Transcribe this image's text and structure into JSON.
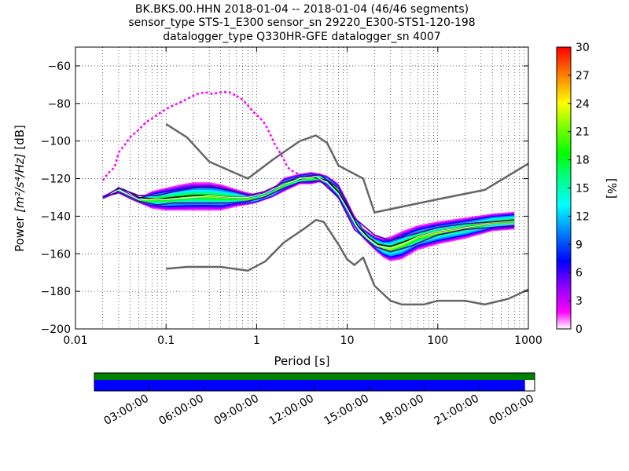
{
  "chart_data": [
    {
      "type": "heatmap",
      "title_lines": [
        "BK.BKS.00.HHN   2018-01-04 -- 2018-01-04  (46/46 segments)",
        "sensor_type STS-1_E300 sensor_sn 29220_E300-STS1-120-198",
        "datalogger_type Q330HR-GFE datalogger_sn 4007"
      ],
      "xlabel": "Period [s]",
      "ylabel_prefix": "Power ",
      "ylabel_units": "[m²/s⁴/Hz]",
      "ylabel_suffix": " [dB]",
      "xscale": "log",
      "xlim": [
        0.01,
        1000
      ],
      "ylim": [
        -200,
        -50
      ],
      "x_ticks": [
        0.01,
        0.1,
        1,
        10,
        100,
        1000
      ],
      "x_tick_labels": [
        "0.01",
        "0.1",
        "1",
        "10",
        "100",
        "1000"
      ],
      "y_ticks": [
        -200,
        -180,
        -160,
        -140,
        -120,
        -100,
        -80,
        -60
      ],
      "y_tick_labels": [
        "−200",
        "−180",
        "−160",
        "−140",
        "−120",
        "−100",
        "−80",
        "−60"
      ],
      "grid": true,
      "colorbar": {
        "label": "[%]",
        "range": [
          0,
          30
        ],
        "ticks": [
          0,
          3,
          6,
          9,
          12,
          15,
          18,
          21,
          24,
          27,
          30
        ],
        "tick_labels": [
          "0",
          "3",
          "6",
          "9",
          "12",
          "15",
          "18",
          "21",
          "24",
          "27",
          "30"
        ],
        "colormap": [
          "#ffffff",
          "#ff00ff",
          "#8000ff",
          "#0000ff",
          "#0080ff",
          "#00ffff",
          "#00ff80",
          "#00ff00",
          "#80ff00",
          "#ffff00",
          "#ff8000",
          "#ff0000"
        ]
      },
      "series": [
        {
          "name": "NHNM",
          "color": "#666666",
          "x": [
            0.1,
            0.17,
            0.3,
            0.8,
            1.5,
            3,
            4.5,
            6,
            8,
            15,
            20,
            40,
            100,
            330,
            1000
          ],
          "y": [
            -91,
            -98,
            -111,
            -120,
            -110,
            -100,
            -97,
            -101,
            -113,
            -120,
            -138,
            -135,
            -131,
            -126,
            -112
          ]
        },
        {
          "name": "NLNM",
          "color": "#666666",
          "x": [
            0.1,
            0.17,
            0.4,
            0.8,
            1.25,
            2,
            3.5,
            4.5,
            5.5,
            8,
            10,
            12,
            15,
            20,
            30,
            40,
            70,
            100,
            200,
            330,
            600,
            1000
          ],
          "y": [
            -168,
            -167,
            -167,
            -169,
            -164,
            -154,
            -146,
            -142,
            -143,
            -155,
            -163,
            -166,
            -162,
            -177,
            -185,
            -187,
            -187,
            -185,
            -185,
            -187,
            -184,
            -179
          ]
        },
        {
          "name": "mode",
          "color": "#000000",
          "x": [
            0.02,
            0.025,
            0.028,
            0.03,
            0.035,
            0.05,
            0.08,
            0.12,
            0.2,
            0.3,
            0.5,
            0.8,
            1.2,
            1.8,
            2.5,
            4,
            6,
            8,
            10,
            13,
            17,
            22,
            30,
            40,
            60,
            100,
            200,
            400,
            700
          ],
          "y": [
            -130,
            -128,
            -128,
            -125,
            -126,
            -130,
            -131,
            -130,
            -129,
            -129,
            -130,
            -130,
            -128,
            -124,
            -121,
            -119,
            -121,
            -127,
            -135,
            -145,
            -151,
            -155,
            -156,
            -154,
            -151,
            -148,
            -146,
            -144,
            -144
          ]
        },
        {
          "name": "mean",
          "color": "#ffffff",
          "x": [
            0.02,
            0.03,
            0.05,
            0.1,
            0.2,
            0.3,
            0.5,
            0.8,
            1.2,
            2,
            3,
            4.5,
            6,
            8,
            10,
            13,
            17,
            22,
            30,
            40,
            60,
            100,
            200,
            400,
            700
          ],
          "y": [
            -130,
            -126,
            -131,
            -131,
            -130,
            -129,
            -130,
            -130,
            -128,
            -123,
            -120,
            -119,
            -122,
            -128,
            -136,
            -146,
            -152,
            -156,
            -157,
            -155,
            -151,
            -148,
            -146,
            -144,
            -144
          ]
        },
        {
          "name": "percentile-upper",
          "color": "#5000a0",
          "x": [
            0.02,
            0.03,
            0.05,
            0.08,
            0.12,
            0.2,
            0.3,
            0.5,
            0.8,
            1.2,
            2,
            3,
            5,
            8,
            12,
            20,
            30,
            50,
            100,
            200,
            400,
            700
          ],
          "y": [
            -130,
            -125,
            -129,
            -129,
            -127,
            -125,
            -124,
            -126,
            -129,
            -127,
            -122,
            -119,
            -118,
            -125,
            -141,
            -150,
            -153,
            -150,
            -146,
            -144,
            -143,
            -142
          ]
        },
        {
          "name": "percentile-lower",
          "color": "#5000a0",
          "x": [
            0.02,
            0.03,
            0.05,
            0.08,
            0.12,
            0.2,
            0.3,
            0.5,
            0.8,
            1.2,
            2,
            3,
            5,
            8,
            12,
            20,
            30,
            50,
            100,
            200,
            400,
            700
          ],
          "y": [
            -130,
            -127,
            -132,
            -134,
            -133,
            -133,
            -133,
            -133,
            -132,
            -130,
            -125,
            -122,
            -121,
            -130,
            -147,
            -156,
            -159,
            -156,
            -150,
            -147,
            -146,
            -145
          ]
        },
        {
          "name": "scatter-upper",
          "color": "#ff00ff",
          "x": [
            0.02,
            0.023,
            0.027,
            0.03,
            0.035,
            0.04,
            0.05,
            0.06,
            0.07,
            0.08,
            0.1,
            0.12,
            0.15,
            0.18,
            0.22,
            0.27,
            0.33,
            0.4,
            0.5,
            0.6
          ],
          "y": [
            -121,
            -117,
            -114,
            -106,
            -102,
            -98,
            -94,
            -90,
            -88,
            -86,
            -83,
            -81,
            -79,
            -77,
            -75,
            -74,
            -75,
            -74,
            -74,
            -76
          ]
        },
        {
          "name": "scatter-upper-2",
          "color": "#ff00ff",
          "x": [
            0.6,
            0.7,
            0.8,
            0.9,
            1,
            1.1,
            1.2,
            1.3,
            1.4,
            1.5,
            1.6,
            1.8,
            2,
            2.2,
            2.5,
            3
          ],
          "y": [
            -76,
            -78,
            -81,
            -84,
            -86,
            -88,
            -90,
            -93,
            -96,
            -99,
            -102,
            -106,
            -110,
            -114,
            -116,
            -118
          ]
        }
      ],
      "density_bands": [
        {
          "x": [
            0.02,
            0.025,
            0.03,
            0.04,
            0.05,
            0.07,
            0.1,
            0.15,
            0.2,
            0.3,
            0.4,
            0.6,
            0.8,
            1,
            1.5,
            2,
            3,
            4,
            5,
            6,
            8,
            10,
            12,
            15,
            20,
            25,
            30,
            40,
            60,
            100,
            200,
            400,
            700
          ],
          "y_low": [
            -131,
            -129,
            -128,
            -131,
            -133,
            -136,
            -137,
            -137,
            -137,
            -137,
            -137,
            -135,
            -134,
            -133,
            -130,
            -127,
            -123,
            -123,
            -122,
            -124,
            -131,
            -139,
            -146,
            -152,
            -158,
            -162,
            -164,
            -163,
            -158,
            -155,
            -152,
            -148,
            -147
          ],
          "y_high": [
            -129,
            -127,
            -124,
            -128,
            -130,
            -126,
            -124,
            -122,
            -121,
            -121,
            -122,
            -125,
            -127,
            -128,
            -125,
            -119,
            -117,
            -116,
            -117,
            -118,
            -122,
            -131,
            -139,
            -146,
            -150,
            -151,
            -150,
            -147,
            -144,
            -142,
            -140,
            -138,
            -137
          ]
        }
      ]
    },
    {
      "type": "table",
      "timeline": {
        "time_labels": [
          "03:00:00",
          "06:00:00",
          "09:00:00",
          "12:00:00",
          "15:00:00",
          "18:00:00",
          "21:00:00",
          "00:00:00"
        ],
        "range_hours": [
          0,
          24
        ],
        "top_bar_color": "#008000",
        "bottom_bar_color": "#0000ff",
        "bottom_bar_fraction": 0.978
      }
    }
  ]
}
